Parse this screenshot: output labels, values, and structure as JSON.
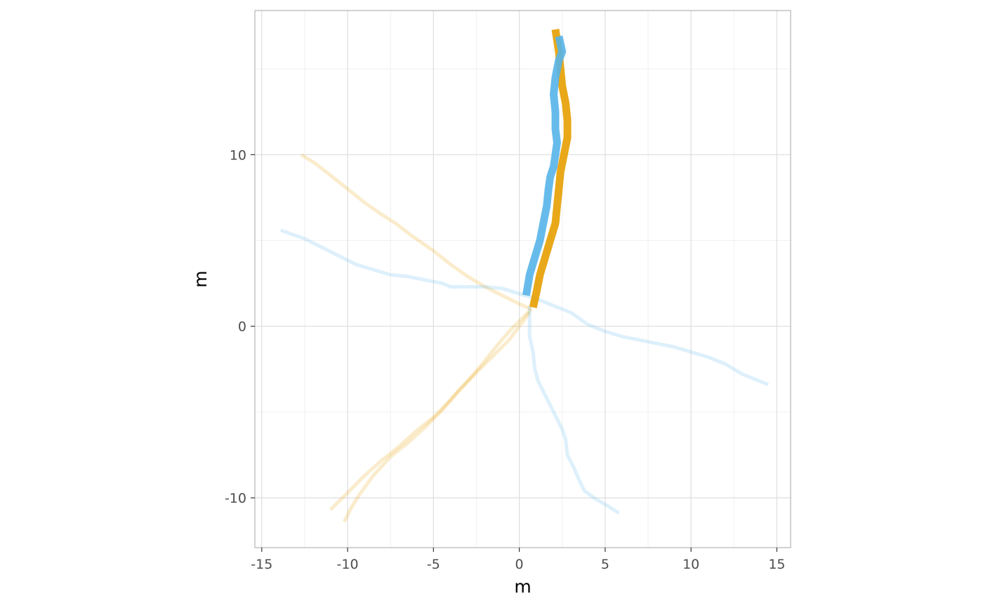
{
  "chart_data": {
    "type": "line",
    "title": "",
    "xlabel": "m",
    "ylabel": "m",
    "xlim": [
      -15.4,
      15.8
    ],
    "ylim": [
      -12.9,
      18.4
    ],
    "x_ticks": [
      "-15",
      "-10",
      "-5",
      "0",
      "5",
      "10",
      "15"
    ],
    "x_tick_values": [
      -15,
      -10,
      -5,
      0,
      5,
      10,
      15
    ],
    "y_ticks": [
      "-10",
      "0",
      "10"
    ],
    "y_tick_values": [
      -10,
      0,
      10
    ],
    "grid": true,
    "legend": "none",
    "colors": {
      "orange": "#E69F00",
      "blue": "#56B4E9",
      "panel_border": "#b3b3b3",
      "grid_major": "#dedede",
      "grid_minor": "#ededed"
    },
    "series": [
      {
        "color": "orange",
        "style": "faint",
        "points": [
          [
            -12.7,
            10.0
          ],
          [
            -11.9,
            9.5
          ],
          [
            -11.0,
            8.8
          ],
          [
            -10.0,
            8.0
          ],
          [
            -9.0,
            7.2
          ],
          [
            -8.0,
            6.5
          ],
          [
            -7.2,
            6.0
          ],
          [
            -6.3,
            5.3
          ],
          [
            -5.0,
            4.4
          ],
          [
            -4.0,
            3.6
          ],
          [
            -3.0,
            2.9
          ],
          [
            -2.0,
            2.3
          ],
          [
            -1.0,
            1.8
          ],
          [
            0.0,
            1.3
          ],
          [
            0.7,
            1.0
          ]
        ]
      },
      {
        "color": "orange",
        "style": "faint",
        "points": [
          [
            0.7,
            1.0
          ],
          [
            0.2,
            0.5
          ],
          [
            -0.5,
            -0.2
          ],
          [
            -1.2,
            -1.0
          ],
          [
            -2.0,
            -2.0
          ],
          [
            -3.0,
            -3.2
          ],
          [
            -4.0,
            -4.3
          ],
          [
            -5.0,
            -5.3
          ],
          [
            -6.0,
            -6.1
          ],
          [
            -7.0,
            -7.0
          ],
          [
            -8.0,
            -7.8
          ],
          [
            -9.0,
            -8.7
          ],
          [
            -10.0,
            -9.7
          ],
          [
            -11.0,
            -10.7
          ]
        ]
      },
      {
        "color": "orange",
        "style": "faint",
        "points": [
          [
            0.6,
            0.8
          ],
          [
            0.0,
            0.0
          ],
          [
            -0.6,
            -0.8
          ],
          [
            -1.5,
            -1.7
          ],
          [
            -2.5,
            -2.7
          ],
          [
            -3.5,
            -3.7
          ],
          [
            -4.5,
            -4.9
          ],
          [
            -5.5,
            -5.9
          ],
          [
            -6.5,
            -6.8
          ],
          [
            -7.5,
            -7.6
          ],
          [
            -8.5,
            -8.7
          ],
          [
            -9.3,
            -9.8
          ],
          [
            -9.8,
            -10.6
          ],
          [
            -10.2,
            -11.4
          ]
        ]
      },
      {
        "color": "blue",
        "style": "faint",
        "points": [
          [
            -13.9,
            5.6
          ],
          [
            -12.5,
            5.1
          ],
          [
            -11.5,
            4.6
          ],
          [
            -10.5,
            4.1
          ],
          [
            -9.5,
            3.6
          ],
          [
            -8.5,
            3.3
          ],
          [
            -7.5,
            3.0
          ],
          [
            -6.5,
            2.9
          ],
          [
            -5.5,
            2.7
          ],
          [
            -4.5,
            2.5
          ],
          [
            -4.0,
            2.3
          ],
          [
            -3.0,
            2.3
          ],
          [
            -2.0,
            2.3
          ],
          [
            -1.0,
            2.2
          ],
          [
            0.0,
            1.9
          ],
          [
            1.0,
            1.6
          ],
          [
            2.0,
            1.2
          ],
          [
            3.0,
            0.8
          ],
          [
            4.0,
            0.1
          ],
          [
            5.0,
            -0.3
          ],
          [
            6.0,
            -0.6
          ],
          [
            7.0,
            -0.8
          ],
          [
            8.0,
            -1.0
          ],
          [
            9.0,
            -1.2
          ],
          [
            10.0,
            -1.5
          ],
          [
            11.0,
            -1.8
          ],
          [
            12.0,
            -2.2
          ],
          [
            13.0,
            -2.8
          ],
          [
            14.5,
            -3.4
          ]
        ]
      },
      {
        "color": "blue",
        "style": "faint",
        "points": [
          [
            0.6,
            1.2
          ],
          [
            0.6,
            0.2
          ],
          [
            0.6,
            -0.6
          ],
          [
            0.8,
            -1.5
          ],
          [
            0.9,
            -2.5
          ],
          [
            1.1,
            -3.2
          ],
          [
            1.5,
            -4.0
          ],
          [
            2.0,
            -5.0
          ],
          [
            2.5,
            -6.0
          ],
          [
            2.7,
            -6.6
          ],
          [
            2.8,
            -7.5
          ],
          [
            3.2,
            -8.3
          ],
          [
            3.5,
            -9.0
          ],
          [
            3.8,
            -9.6
          ],
          [
            4.5,
            -10.1
          ],
          [
            5.2,
            -10.5
          ],
          [
            5.8,
            -10.9
          ]
        ]
      },
      {
        "color": "orange",
        "style": "bold",
        "points": [
          [
            0.8,
            1.1
          ],
          [
            1.0,
            2.0
          ],
          [
            1.2,
            3.0
          ],
          [
            1.5,
            4.0
          ],
          [
            1.8,
            5.0
          ],
          [
            2.1,
            6.0
          ],
          [
            2.2,
            7.0
          ],
          [
            2.3,
            8.0
          ],
          [
            2.4,
            9.0
          ],
          [
            2.6,
            10.0
          ],
          [
            2.8,
            11.0
          ],
          [
            2.8,
            12.0
          ],
          [
            2.7,
            13.0
          ],
          [
            2.5,
            14.0
          ],
          [
            2.4,
            15.0
          ],
          [
            2.3,
            16.0
          ],
          [
            2.1,
            17.3
          ]
        ]
      },
      {
        "color": "blue",
        "style": "bold",
        "points": [
          [
            0.4,
            1.8
          ],
          [
            0.6,
            3.0
          ],
          [
            0.9,
            4.0
          ],
          [
            1.2,
            5.0
          ],
          [
            1.4,
            6.0
          ],
          [
            1.6,
            7.0
          ],
          [
            1.7,
            8.0
          ],
          [
            1.8,
            8.7
          ],
          [
            2.0,
            9.3
          ],
          [
            2.1,
            10.0
          ],
          [
            2.2,
            10.7
          ],
          [
            2.1,
            11.5
          ],
          [
            2.1,
            12.5
          ],
          [
            2.0,
            13.5
          ],
          [
            2.1,
            14.5
          ],
          [
            2.3,
            15.5
          ],
          [
            2.5,
            16.0
          ],
          [
            2.3,
            16.9
          ]
        ]
      }
    ]
  }
}
